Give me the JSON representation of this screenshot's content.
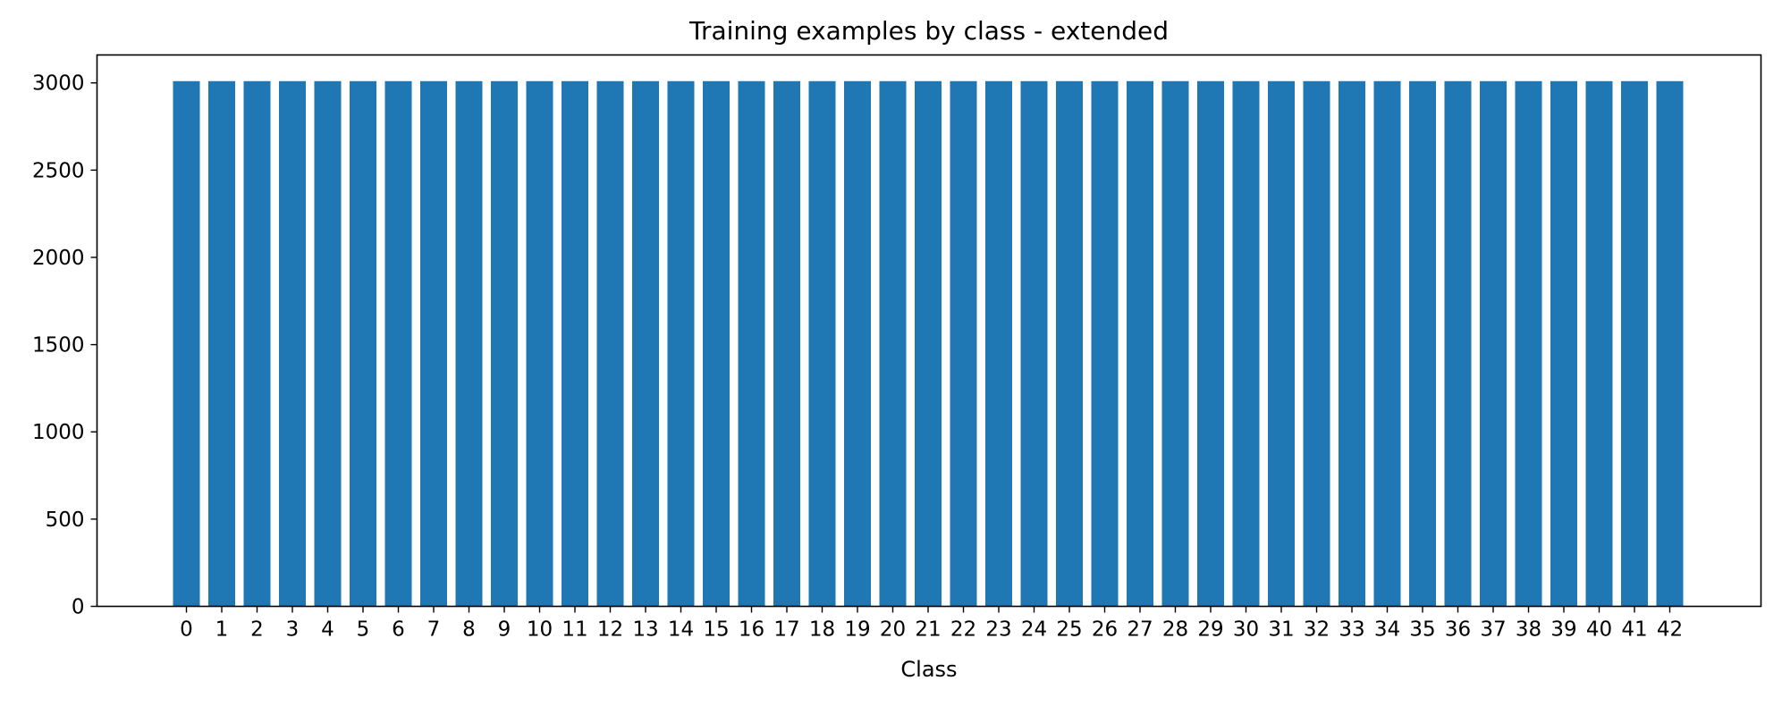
{
  "chart_data": {
    "type": "bar",
    "title": "Training examples by class - extended",
    "xlabel": "Class",
    "ylabel": "",
    "categories": [
      "0",
      "1",
      "2",
      "3",
      "4",
      "5",
      "6",
      "7",
      "8",
      "9",
      "10",
      "11",
      "12",
      "13",
      "14",
      "15",
      "16",
      "17",
      "18",
      "19",
      "20",
      "21",
      "22",
      "23",
      "24",
      "25",
      "26",
      "27",
      "28",
      "29",
      "30",
      "31",
      "32",
      "33",
      "34",
      "35",
      "36",
      "37",
      "38",
      "39",
      "40",
      "41",
      "42"
    ],
    "values": [
      3010,
      3010,
      3010,
      3010,
      3010,
      3010,
      3010,
      3010,
      3010,
      3010,
      3010,
      3010,
      3010,
      3010,
      3010,
      3010,
      3010,
      3010,
      3010,
      3010,
      3010,
      3010,
      3010,
      3010,
      3010,
      3010,
      3010,
      3010,
      3010,
      3010,
      3010,
      3010,
      3010,
      3010,
      3010,
      3010,
      3010,
      3010,
      3010,
      3010,
      3010,
      3010,
      3010
    ],
    "ylim": [
      0,
      3160
    ],
    "yticks": [
      0,
      500,
      1000,
      1500,
      2000,
      2500,
      3000
    ],
    "grid": false,
    "bar_color": "#1f77b4"
  }
}
